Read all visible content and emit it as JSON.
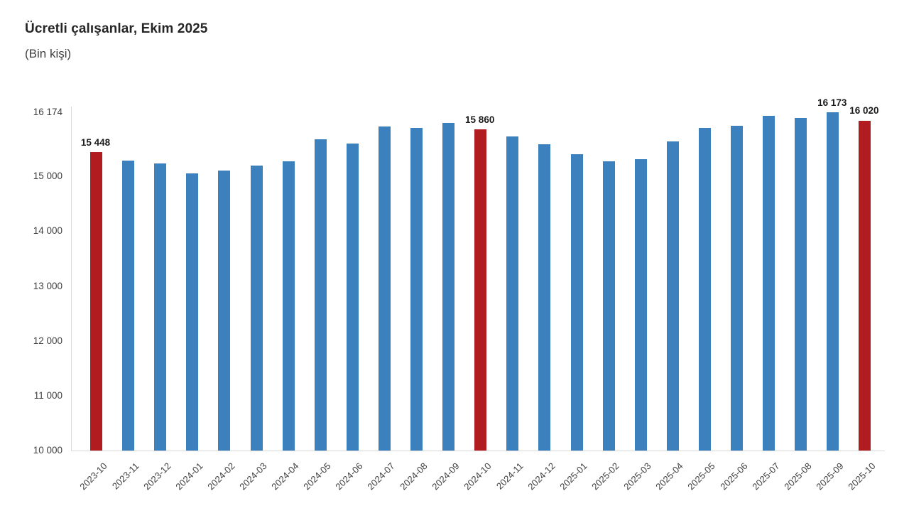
{
  "header": {
    "title": "Ücretli çalışanlar, Ekim 2025",
    "subtitle": "(Bin kişi)"
  },
  "colors": {
    "bar_blue": "#3c80be",
    "bar_red": "#b01c20",
    "axis_line": "#d9d9d9",
    "tick_text": "#404040",
    "data_label_text": "#1a1a1a"
  },
  "chart_data": {
    "type": "bar",
    "title": "Ücretli çalışanlar, Ekim 2025",
    "subtitle": "(Bin kişi)",
    "xlabel": "",
    "ylabel": "",
    "ylim": [
      10000,
      16174
    ],
    "grid": false,
    "legend": false,
    "categories": [
      "2023-10",
      "2023-11",
      "2023-12",
      "2024-01",
      "2024-02",
      "2024-03",
      "2024-04",
      "2024-05",
      "2024-06",
      "2024-07",
      "2024-08",
      "2024-09",
      "2024-10",
      "2024-11",
      "2024-12",
      "2025-01",
      "2025-02",
      "2025-03",
      "2025-04",
      "2025-05",
      "2025-06",
      "2025-07",
      "2025-08",
      "2025-09",
      "2025-10"
    ],
    "values": [
      15448,
      15290,
      15230,
      15060,
      15110,
      15200,
      15270,
      15680,
      15600,
      15910,
      15890,
      15980,
      15860,
      15730,
      15580,
      15410,
      15280,
      15310,
      15640,
      15880,
      15920,
      16110,
      16070,
      16173,
      16020
    ],
    "highlighted_categories": [
      "2023-10",
      "2024-10",
      "2025-10"
    ],
    "data_labels": [
      {
        "category": "2023-10",
        "text": "15 448"
      },
      {
        "category": "2024-10",
        "text": "15 860"
      },
      {
        "category": "2025-09",
        "text": "16 173"
      },
      {
        "category": "2025-10",
        "text": "16 020"
      }
    ],
    "y_ticks": [
      {
        "value": 16174,
        "label": "16 174"
      },
      {
        "value": 15000,
        "label": "15 000"
      },
      {
        "value": 14000,
        "label": "14 000"
      },
      {
        "value": 13000,
        "label": "13 000"
      },
      {
        "value": 12000,
        "label": "12 000"
      },
      {
        "value": 11000,
        "label": "11 000"
      },
      {
        "value": 10000,
        "label": "10 000"
      }
    ]
  }
}
